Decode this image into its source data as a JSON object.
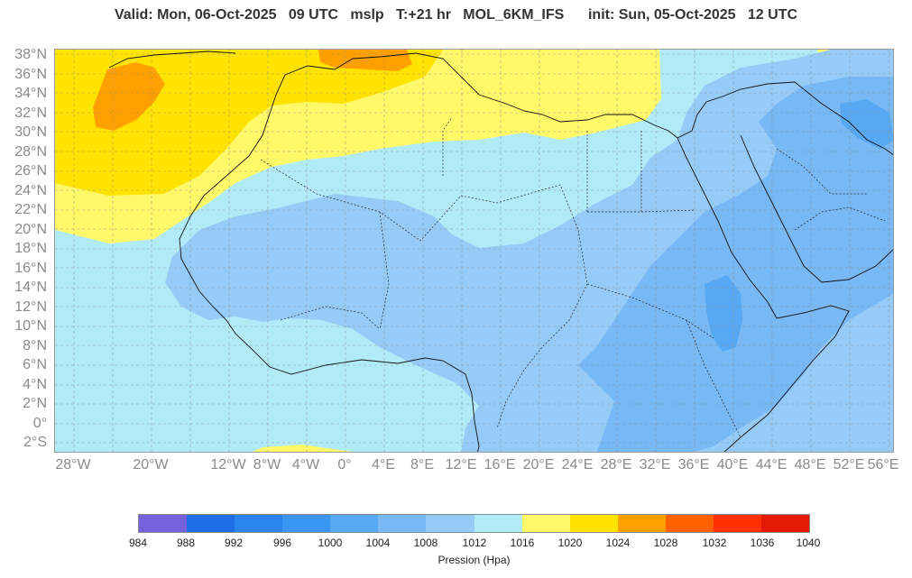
{
  "header": {
    "title": "Valid: Mon, 06-Oct-2025   09 UTC   mslp   T:+21 hr   MOL_6KM_IFS      init: Sun, 05-Oct-2025   12 UTC"
  },
  "map": {
    "lat_labels": [
      "38°N",
      "36°N",
      "34°N",
      "32°N",
      "30°N",
      "28°N",
      "26°N",
      "24°N",
      "22°N",
      "20°N",
      "18°N",
      "16°N",
      "14°N",
      "12°N",
      "10°N",
      "8°N",
      "6°N",
      "4°N",
      "2°N",
      "0°",
      "2°S"
    ],
    "lon_labels": [
      "28°W",
      "20°W",
      "12°W",
      "8°W",
      "4°W",
      "0°",
      "4°E",
      "8°E",
      "12°E",
      "16°E",
      "20°E",
      "24°E",
      "28°E",
      "32°E",
      "36°E",
      "40°E",
      "44°E",
      "48°E",
      "52°E",
      "56°E"
    ]
  },
  "colorbar": {
    "title": "Pression (Hpa)",
    "ticks": [
      "984",
      "988",
      "992",
      "996",
      "1000",
      "1004",
      "1008",
      "1012",
      "1016",
      "1020",
      "1024",
      "1028",
      "1032",
      "1036",
      "1040"
    ],
    "colors": [
      "#7560dd",
      "#1e6fe6",
      "#2b84ee",
      "#3a96f2",
      "#56a9f2",
      "#77b8f5",
      "#96cbf8",
      "#b2ebf8",
      "#fff868",
      "#ffe300",
      "#ffa000",
      "#ff6000",
      "#ff3000",
      "#e41a05"
    ]
  }
}
